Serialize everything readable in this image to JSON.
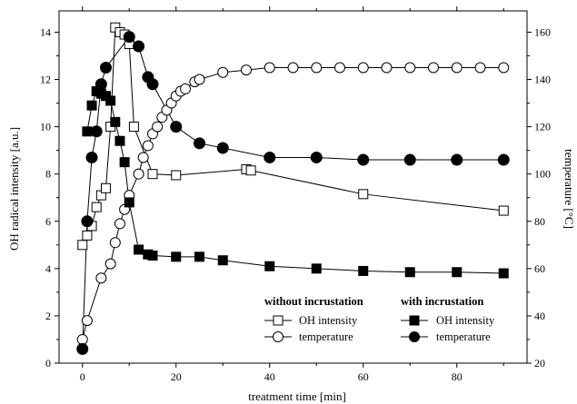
{
  "chart_data": {
    "type": "line",
    "xlabel": "treatment time [min]",
    "ylabel_left": "OH radical intensity [a.u.]",
    "ylabel_right": "temperature [°C]",
    "xlim": [
      -5,
      95
    ],
    "ylim_left": [
      0,
      14.9
    ],
    "ylim_right": [
      20,
      169
    ],
    "x_ticks": [
      0,
      20,
      40,
      60,
      80
    ],
    "y_left_ticks": [
      0,
      2,
      4,
      6,
      8,
      10,
      12,
      14
    ],
    "y_right_ticks": [
      20,
      40,
      60,
      80,
      100,
      120,
      140,
      160
    ],
    "legend": {
      "group1_title": "without incrustation",
      "group2_title": "with incrustation",
      "oh_label": "OH intensity",
      "temp_label": "temperature"
    },
    "series": [
      {
        "name": "OH intensity",
        "group": "without incrustation",
        "axis": "left",
        "marker": "square",
        "filled": false,
        "x": [
          0,
          1,
          2,
          3,
          4,
          5,
          6,
          7,
          8,
          9,
          10,
          11,
          15,
          20,
          35,
          36,
          60,
          90
        ],
        "y": [
          5.0,
          5.4,
          5.8,
          6.6,
          7.1,
          7.4,
          10.0,
          14.2,
          14.0,
          13.9,
          13.5,
          10.0,
          8.0,
          7.95,
          8.2,
          8.15,
          7.15,
          6.45
        ]
      },
      {
        "name": "temperature",
        "group": "without incrustation",
        "axis": "right",
        "marker": "circle",
        "filled": false,
        "x": [
          0,
          1,
          4,
          6,
          7,
          8,
          9,
          10,
          12,
          13,
          14,
          15,
          16,
          17,
          18,
          19,
          20,
          21,
          22,
          24,
          25,
          30,
          35,
          40,
          45,
          50,
          55,
          60,
          65,
          70,
          75,
          80,
          85,
          90
        ],
        "y": [
          30,
          38,
          56,
          62,
          71,
          79,
          85,
          91,
          100,
          107,
          112,
          117,
          120,
          124,
          127,
          130,
          133,
          135,
          136,
          139,
          140,
          143,
          144,
          145,
          145,
          145,
          145,
          145,
          145,
          145,
          145,
          145,
          145,
          145
        ]
      },
      {
        "name": "OH intensity",
        "group": "with incrustation",
        "axis": "left",
        "marker": "square",
        "filled": true,
        "x": [
          1,
          2,
          3,
          4,
          5,
          6,
          7,
          8,
          9,
          10,
          12,
          14,
          15,
          20,
          25,
          30,
          40,
          50,
          60,
          70,
          80,
          90
        ],
        "y": [
          9.8,
          10.9,
          11.5,
          11.4,
          11.3,
          11.1,
          10.2,
          9.4,
          8.5,
          6.8,
          4.8,
          4.6,
          4.55,
          4.5,
          4.5,
          4.35,
          4.1,
          4.0,
          3.9,
          3.85,
          3.85,
          3.8
        ]
      },
      {
        "name": "temperature",
        "group": "with incrustation",
        "axis": "right",
        "marker": "circle",
        "filled": true,
        "x": [
          0,
          1,
          2,
          3,
          4,
          5,
          10,
          12,
          14,
          15,
          20,
          25,
          30,
          40,
          50,
          60,
          70,
          80,
          90
        ],
        "y": [
          26,
          80,
          107,
          118,
          138,
          145,
          158,
          154,
          141,
          138,
          120,
          113,
          111,
          107,
          107,
          106,
          106,
          106,
          106
        ]
      }
    ]
  }
}
